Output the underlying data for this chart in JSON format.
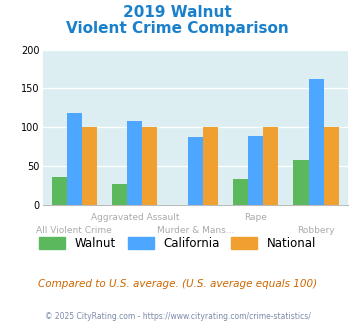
{
  "title_line1": "2019 Walnut",
  "title_line2": "Violent Crime Comparison",
  "walnut": [
    35,
    27,
    0,
    33,
    58
  ],
  "california": [
    118,
    108,
    87,
    88,
    162
  ],
  "national": [
    100,
    100,
    100,
    100,
    100
  ],
  "walnut_color": "#5cb85c",
  "california_color": "#4da6ff",
  "national_color": "#f0a030",
  "bg_color": "#ddeef2",
  "title_color": "#1a80cc",
  "footer_text": "Compared to U.S. average. (U.S. average equals 100)",
  "footnote": "© 2025 CityRating.com - https://www.cityrating.com/crime-statistics/",
  "footer_color": "#cc6600",
  "footnote_color": "#7a8aaa",
  "ylim": [
    0,
    200
  ],
  "yticks": [
    0,
    50,
    100,
    150,
    200
  ],
  "top_labels": [
    "",
    "Aggravated Assault",
    "",
    "Rape",
    ""
  ],
  "bottom_labels": [
    "All Violent Crime",
    "",
    "Murder & Mans...",
    "",
    "Robbery"
  ]
}
